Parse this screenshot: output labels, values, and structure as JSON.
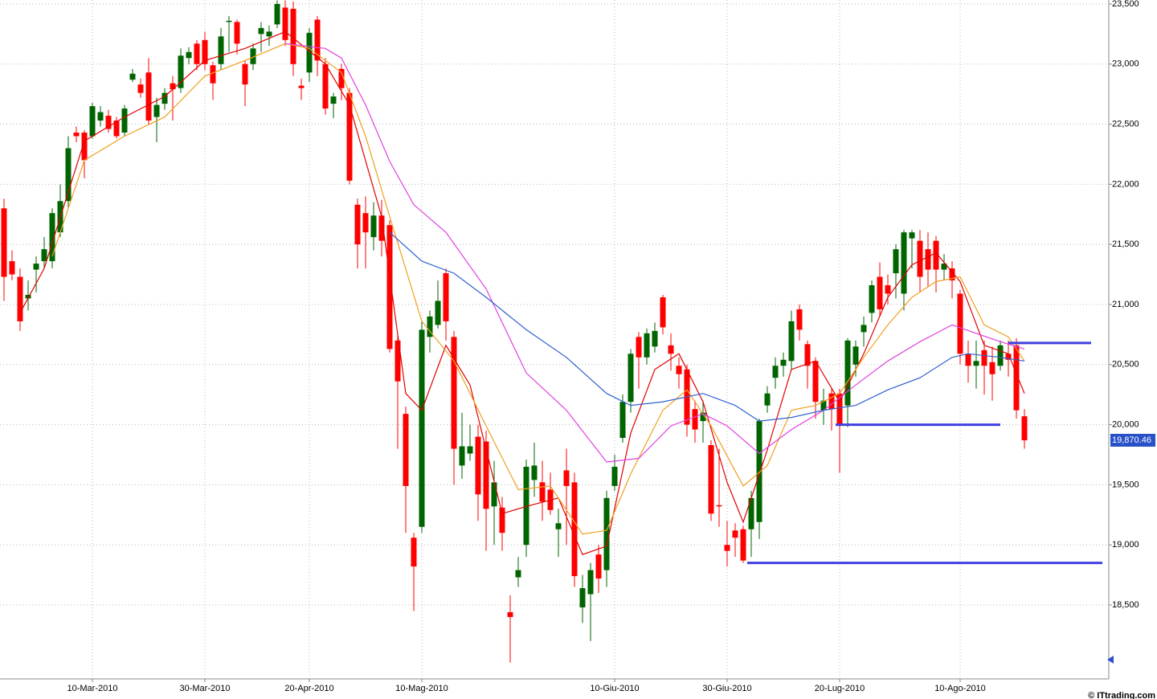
{
  "chart_data": {
    "type": "candlestick",
    "up_color": "#006400",
    "down_color": "#ff0000",
    "xlim": [
      -0.5,
      137.5
    ],
    "ylim": [
      17885,
      23533
    ],
    "grid": true,
    "xticks": [
      {
        "value": 11,
        "label": "10-Mar-2010"
      },
      {
        "value": 25,
        "label": "30-Mar-2010"
      },
      {
        "value": 38,
        "label": "20-Apr-2010"
      },
      {
        "value": 52,
        "label": "10-Mag-2010"
      },
      {
        "value": 76,
        "label": "10-Giu-2010"
      },
      {
        "value": 90,
        "label": "30-Giu-2010"
      },
      {
        "value": 104,
        "label": "20-Lug-2010"
      },
      {
        "value": 119,
        "label": "10-Ago-2010"
      }
    ],
    "yticks": [
      {
        "value": 18500,
        "label": "18,500"
      },
      {
        "value": 19000,
        "label": "19,000"
      },
      {
        "value": 19500,
        "label": "19,500"
      },
      {
        "value": 20000,
        "label": "20,000"
      },
      {
        "value": 20500,
        "label": "20,500"
      },
      {
        "value": 21000,
        "label": "21,000"
      },
      {
        "value": 21500,
        "label": "21,500"
      },
      {
        "value": 22000,
        "label": "22,000"
      },
      {
        "value": 22500,
        "label": "22,500"
      },
      {
        "value": 23000,
        "label": "23,000"
      },
      {
        "value": 23500,
        "label": "23,500"
      }
    ],
    "open": [
      21800,
      21360,
      21230,
      21050,
      21290,
      21360,
      21360,
      21600,
      21860,
      22430,
      22430,
      22400,
      22530,
      22570,
      22530,
      22430,
      22870,
      22830,
      22930,
      22560,
      22670,
      22840,
      22800,
      23050,
      23170,
      23200,
      22990,
      23000,
      23350,
      23350,
      23000,
      23000,
      23250,
      23230,
      23330,
      23470,
      23460,
      22820,
      22930,
      23370,
      23000,
      22670,
      22960,
      22760,
      21830,
      21760,
      21560,
      21740,
      21660,
      20700,
      20090,
      19060,
      19150,
      20730,
      20830,
      21260,
      20730,
      19660,
      19760,
      19900,
      19860,
      19320,
      19310,
      18440,
      18730,
      19000,
      19540,
      19520,
      19460,
      19130,
      19620,
      19520,
      18480,
      18590,
      18920,
      18790,
      19490,
      19890,
      20190,
      20730,
      20560,
      20650,
      21060,
      20660,
      20490,
      20460,
      20130,
      20030,
      19830,
      19330,
      19000,
      19120,
      19130,
      19130,
      19190,
      20160,
      20390,
      20490,
      20530,
      20960,
      20670,
      20530,
      20120,
      20260,
      20260,
      20160,
      20500,
      20770,
      20930,
      21230,
      21160,
      21260,
      21090,
      21550,
      21530,
      21460,
      21530,
      21290,
      21300,
      21090,
      20590,
      20490,
      20620,
      20520,
      20490,
      20590,
      20660,
      20070
    ],
    "high": [
      21880,
      21450,
      21300,
      21200,
      21400,
      21560,
      21800,
      22000,
      22400,
      22480,
      22450,
      22680,
      22650,
      22620,
      22560,
      22660,
      22960,
      22880,
      23050,
      22720,
      22800,
      22900,
      23130,
      23140,
      23200,
      23270,
      23020,
      23300,
      23400,
      23370,
      23030,
      23170,
      23350,
      23320,
      23530,
      23530,
      23520,
      22880,
      23300,
      23400,
      23050,
      22760,
      23000,
      22800,
      21880,
      21900,
      21850,
      21870,
      21700,
      20750,
      20150,
      19100,
      20870,
      20950,
      21200,
      21300,
      20780,
      20100,
      20000,
      20000,
      19950,
      19700,
      19400,
      18580,
      18900,
      19710,
      19850,
      19700,
      19600,
      19300,
      19800,
      19600,
      18750,
      18850,
      19000,
      19450,
      19750,
      20250,
      20630,
      20770,
      20800,
      20850,
      21080,
      20760,
      20560,
      20500,
      20200,
      20200,
      19870,
      19800,
      19200,
      19180,
      19160,
      19450,
      20050,
      20320,
      20560,
      20600,
      20950,
      21000,
      20700,
      20560,
      20300,
      20300,
      20300,
      20720,
      20700,
      20900,
      21200,
      21350,
      21250,
      21500,
      21620,
      21620,
      21620,
      21600,
      21570,
      21420,
      21360,
      21120,
      20700,
      20700,
      20700,
      20650,
      20700,
      20700,
      20720,
      20130
    ],
    "low": [
      21030,
      21200,
      20780,
      20950,
      21100,
      21300,
      21300,
      21560,
      21800,
      22350,
      22050,
      22380,
      22480,
      22430,
      22380,
      22400,
      22850,
      22720,
      22500,
      22350,
      22620,
      22530,
      22760,
      23000,
      22950,
      22950,
      22700,
      22950,
      23100,
      23080,
      22650,
      22950,
      23100,
      23150,
      23300,
      23150,
      22900,
      22700,
      22850,
      22900,
      22580,
      22550,
      22700,
      22000,
      21300,
      21300,
      21450,
      21400,
      20600,
      19800,
      19100,
      18450,
      19100,
      20600,
      20800,
      20700,
      19500,
      19550,
      19700,
      19200,
      18950,
      19000,
      18950,
      18020,
      18650,
      18900,
      19400,
      19200,
      19250,
      18900,
      19000,
      18650,
      18350,
      18200,
      18600,
      18650,
      19450,
      19850,
      20100,
      20300,
      20500,
      20600,
      20750,
      20450,
      20300,
      19900,
      19850,
      19850,
      19200,
      19150,
      18820,
      18900,
      18850,
      18900,
      19050,
      20100,
      20300,
      20400,
      20450,
      20700,
      20300,
      20050,
      20000,
      19950,
      19600,
      19980,
      20400,
      20650,
      20850,
      20900,
      21000,
      21050,
      20950,
      21300,
      21100,
      21150,
      21100,
      21200,
      21050,
      20500,
      20350,
      20300,
      20250,
      20200,
      20450,
      20400,
      20050,
      19800
    ],
    "close": [
      21230,
      21250,
      20860,
      21080,
      21340,
      21460,
      21760,
      21860,
      22300,
      22400,
      22200,
      22650,
      22600,
      22460,
      22400,
      22630,
      22920,
      22760,
      22530,
      22660,
      22760,
      22790,
      23070,
      23100,
      23000,
      23000,
      22840,
      23230,
      23360,
      23170,
      22830,
      23130,
      23300,
      23270,
      23500,
      23200,
      23000,
      22800,
      23260,
      23030,
      22630,
      22730,
      22800,
      22030,
      21500,
      21600,
      21740,
      21530,
      20630,
      20360,
      19490,
      18820,
      20790,
      20900,
      21030,
      20860,
      19800,
      19820,
      19820,
      19420,
      19300,
      19520,
      19100,
      18400,
      18790,
      19650,
      19660,
      19360,
      19290,
      19180,
      19490,
      18740,
      18640,
      18790,
      18720,
      19390,
      19650,
      20190,
      20590,
      20560,
      20760,
      20780,
      20810,
      20590,
      20420,
      20000,
      19960,
      20100,
      19260,
      19320,
      18950,
      19060,
      18870,
      19390,
      20030,
      20260,
      20490,
      20540,
      20860,
      20790,
      20490,
      20190,
      20200,
      20130,
      19990,
      20700,
      20650,
      20830,
      21160,
      20960,
      21090,
      21460,
      21600,
      21600,
      21230,
      21290,
      21290,
      21340,
      21200,
      20590,
      20490,
      20530,
      20490,
      20420,
      20660,
      20540,
      20120,
      19870
    ],
    "lines": [
      {
        "color": "#e00000",
        "x": [
          2,
          5,
          10,
          15,
          20,
          25,
          30,
          35,
          40,
          43,
          47,
          50,
          52,
          55,
          58,
          62,
          65,
          69,
          72,
          75,
          78,
          81,
          84,
          87,
          90,
          92,
          95,
          98,
          101,
          104,
          107,
          110,
          113,
          116,
          119,
          122,
          125,
          127
        ],
        "values": [
          20930,
          21300,
          22360,
          22560,
          22730,
          23030,
          23130,
          23270,
          23000,
          22660,
          21730,
          20260,
          20120,
          20660,
          20330,
          19260,
          19320,
          19390,
          18920,
          18990,
          19930,
          20460,
          20590,
          20190,
          19520,
          19190,
          19790,
          20460,
          20530,
          20190,
          20590,
          21060,
          21330,
          21430,
          21190,
          20660,
          20590,
          20260
        ]
      },
      {
        "color": "#f0a020",
        "x": [
          6,
          10,
          15,
          20,
          25,
          30,
          35,
          38,
          42,
          45,
          48,
          52,
          56,
          60,
          64,
          68,
          72,
          75,
          78,
          82,
          85,
          88,
          92,
          95,
          98,
          101,
          104,
          107,
          110,
          113,
          116,
          119,
          122,
          125,
          127
        ],
        "values": [
          21400,
          22200,
          22400,
          22560,
          22900,
          23030,
          23170,
          23130,
          22930,
          22400,
          21730,
          20860,
          20530,
          19990,
          19460,
          19490,
          19090,
          19120,
          19590,
          20120,
          20290,
          19990,
          19490,
          19660,
          20120,
          20160,
          20260,
          20560,
          20830,
          21060,
          21190,
          21230,
          20830,
          20730,
          20530
        ]
      },
      {
        "color": "#e040e0",
        "x": [
          35,
          40,
          42,
          45,
          48,
          51,
          55,
          60,
          65,
          70,
          75,
          79,
          83,
          87,
          90,
          94,
          98,
          102,
          106,
          110,
          114,
          118,
          121,
          124,
          127
        ],
        "values": [
          23170,
          23130,
          23050,
          22660,
          22190,
          21830,
          21600,
          21130,
          20430,
          20120,
          19690,
          19720,
          19990,
          20090,
          19990,
          19760,
          19960,
          20120,
          20330,
          20530,
          20690,
          20830,
          20760,
          20690,
          20630
        ]
      },
      {
        "color": "#3060d0",
        "x": [
          48,
          52,
          56,
          60,
          65,
          70,
          75,
          78,
          82,
          87,
          91,
          94,
          98,
          102,
          106,
          110,
          114,
          118,
          120,
          124,
          127
        ],
        "values": [
          21600,
          21360,
          21260,
          21060,
          20790,
          20560,
          20260,
          20160,
          20190,
          20260,
          20160,
          20030,
          20060,
          20120,
          20160,
          20290,
          20390,
          20560,
          20590,
          20560,
          20530
        ]
      }
    ],
    "levels": [
      {
        "value": 18850,
        "x": [
          92.5,
          136.7
        ],
        "color": "#4040e0"
      },
      {
        "value": 20000,
        "x": [
          103.5,
          124
        ],
        "color": "#4040e0"
      },
      {
        "value": 20680,
        "x": [
          125,
          135.3
        ],
        "color": "#4040e0"
      }
    ],
    "last_price": {
      "value": 19870.46,
      "label": "19,870.46"
    },
    "source": "© ITtrading.com"
  }
}
